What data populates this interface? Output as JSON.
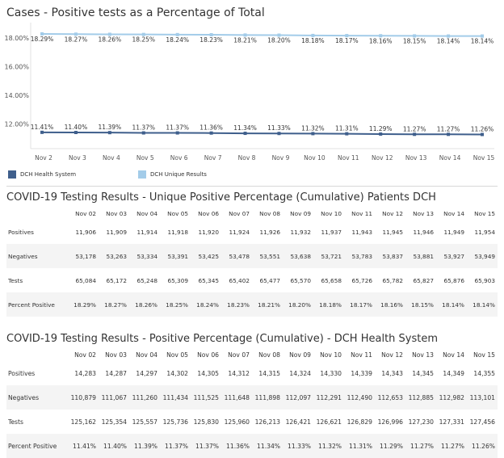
{
  "chart_title": "Cases - Positive tests as a Percentage of Total",
  "chart_data": {
    "type": "line",
    "categories": [
      "Nov 2",
      "Nov 3",
      "Nov 4",
      "Nov 5",
      "Nov 6",
      "Nov 7",
      "Nov 8",
      "Nov 9",
      "Nov 10",
      "Nov 11",
      "Nov 12",
      "Nov 13",
      "Nov 14",
      "Nov 15"
    ],
    "y_ticks": [
      "18.00%",
      "16.00%",
      "14.00%",
      "12.00%"
    ],
    "ylim": [
      11.4,
      18.4
    ],
    "series": [
      {
        "name": "DCH Unique Results",
        "color": "#a3cce9",
        "values": [
          18.29,
          18.27,
          18.26,
          18.25,
          18.24,
          18.23,
          18.21,
          18.2,
          18.18,
          18.17,
          18.16,
          18.15,
          18.14,
          18.14
        ],
        "labels": [
          "18.29%",
          "18.27%",
          "18.26%",
          "18.25%",
          "18.24%",
          "18.23%",
          "18.21%",
          "18.20%",
          "18.18%",
          "18.17%",
          "18.16%",
          "18.15%",
          "18.14%",
          "18.14%"
        ]
      },
      {
        "name": "DCH Health System",
        "color": "#3f5f8c",
        "values": [
          11.41,
          11.4,
          11.39,
          11.37,
          11.37,
          11.36,
          11.34,
          11.33,
          11.32,
          11.31,
          11.29,
          11.27,
          11.27,
          11.26
        ],
        "labels": [
          "11.41%",
          "11.40%",
          "11.39%",
          "11.37%",
          "11.37%",
          "11.36%",
          "11.34%",
          "11.33%",
          "11.32%",
          "11.31%",
          "11.29%",
          "11.27%",
          "11.27%",
          "11.26%"
        ]
      }
    ],
    "grid": false,
    "legend": "bottom-left"
  },
  "legend": {
    "items": [
      {
        "label": "DCH Health System",
        "color": "#3f5f8c"
      },
      {
        "label": "DCH Unique Results",
        "color": "#a3cce9"
      }
    ]
  },
  "table1": {
    "title": "COVID-19 Testing Results - Unique Positive Percentage (Cumulative) Patients DCH",
    "columns": [
      "Nov 02",
      "Nov 03",
      "Nov 04",
      "Nov 05",
      "Nov 06",
      "Nov 07",
      "Nov 08",
      "Nov 09",
      "Nov 10",
      "Nov 11",
      "Nov 12",
      "Nov 13",
      "Nov 14",
      "Nov 15"
    ],
    "rows": [
      {
        "label": "Positives",
        "cells": [
          "11,906",
          "11,909",
          "11,914",
          "11,918",
          "11,920",
          "11,924",
          "11,926",
          "11,932",
          "11,937",
          "11,943",
          "11,945",
          "11,946",
          "11,949",
          "11,954"
        ]
      },
      {
        "label": "Negatives",
        "cells": [
          "53,178",
          "53,263",
          "53,334",
          "53,391",
          "53,425",
          "53,478",
          "53,551",
          "53,638",
          "53,721",
          "53,783",
          "53,837",
          "53,881",
          "53,927",
          "53,949"
        ]
      },
      {
        "label": "Tests",
        "cells": [
          "65,084",
          "65,172",
          "65,248",
          "65,309",
          "65,345",
          "65,402",
          "65,477",
          "65,570",
          "65,658",
          "65,726",
          "65,782",
          "65,827",
          "65,876",
          "65,903"
        ]
      },
      {
        "label": "Percent Positive",
        "cells": [
          "18.29%",
          "18.27%",
          "18.26%",
          "18.25%",
          "18.24%",
          "18.23%",
          "18.21%",
          "18.20%",
          "18.18%",
          "18.17%",
          "18.16%",
          "18.15%",
          "18.14%",
          "18.14%"
        ]
      }
    ]
  },
  "table2": {
    "title": "COVID-19 Testing Results - Positive Percentage (Cumulative) - DCH Health System",
    "columns": [
      "Nov 02",
      "Nov 03",
      "Nov 04",
      "Nov 05",
      "Nov 06",
      "Nov 07",
      "Nov 08",
      "Nov 09",
      "Nov 10",
      "Nov 11",
      "Nov 12",
      "Nov 13",
      "Nov 14",
      "Nov 15"
    ],
    "rows": [
      {
        "label": "Positives",
        "cells": [
          "14,283",
          "14,287",
          "14,297",
          "14,302",
          "14,305",
          "14,312",
          "14,315",
          "14,324",
          "14,330",
          "14,339",
          "14,343",
          "14,345",
          "14,349",
          "14,355"
        ]
      },
      {
        "label": "Negatives",
        "cells": [
          "110,879",
          "111,067",
          "111,260",
          "111,434",
          "111,525",
          "111,648",
          "111,898",
          "112,097",
          "112,291",
          "112,490",
          "112,653",
          "112,885",
          "112,982",
          "113,101"
        ]
      },
      {
        "label": "Tests",
        "cells": [
          "125,162",
          "125,354",
          "125,557",
          "125,736",
          "125,830",
          "125,960",
          "126,213",
          "126,421",
          "126,621",
          "126,829",
          "126,996",
          "127,230",
          "127,331",
          "127,456"
        ]
      },
      {
        "label": "Percent Positive",
        "cells": [
          "11.41%",
          "11.40%",
          "11.39%",
          "11.37%",
          "11.37%",
          "11.36%",
          "11.34%",
          "11.33%",
          "11.32%",
          "11.31%",
          "11.29%",
          "11.27%",
          "11.27%",
          "11.26%"
        ]
      }
    ]
  }
}
